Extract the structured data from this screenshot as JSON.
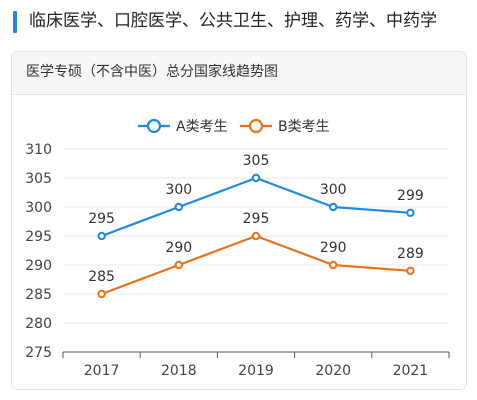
{
  "header": {
    "title": "临床医学、口腔医学、公共卫生、护理、药学、中药学"
  },
  "card": {
    "title": "医学专硕（不含中医）总分国家线趋势图"
  },
  "colors": {
    "accent": "#1e88e5",
    "series_a": "#1e88e5",
    "series_b": "#e8721c",
    "axis": "#555555",
    "grid": "#e8e8e8",
    "text": "#333333"
  },
  "chart_data": {
    "type": "line",
    "categories": [
      "2017",
      "2018",
      "2019",
      "2020",
      "2021"
    ],
    "series": [
      {
        "name": "A类考生",
        "values": [
          295,
          300,
          305,
          300,
          299
        ],
        "color": "#1e88e5"
      },
      {
        "name": "B类考生",
        "values": [
          285,
          290,
          295,
          290,
          289
        ],
        "color": "#e8721c"
      }
    ],
    "ylim": [
      275,
      310
    ],
    "yticks": [
      "275",
      "280",
      "285",
      "290",
      "295",
      "300",
      "305",
      "310"
    ],
    "grid": true,
    "legend": "top-center",
    "title": "医学专硕（不含中医）总分国家线趋势图",
    "xlabel": "",
    "ylabel": ""
  }
}
